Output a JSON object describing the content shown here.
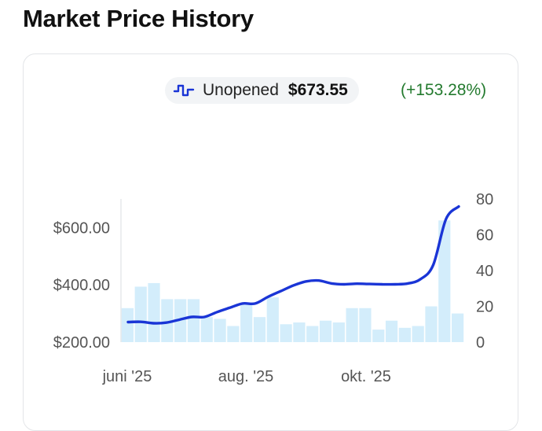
{
  "page": {
    "title": "Market Price History"
  },
  "legend": {
    "icon": "step-line-icon",
    "name": "Unopened",
    "price": "$673.55",
    "change": "(+153.28%)"
  },
  "colors": {
    "line": "#1a35d6",
    "bar": "#d3edfb",
    "change": "#237a2e"
  },
  "chart_data": {
    "type": "line",
    "x_tick_labels": [
      "juni '25",
      "aug. '25",
      "okt. '25"
    ],
    "y_left_ticks": [
      "$200.00",
      "$400.00",
      "$600.00"
    ],
    "y_left_values": [
      200,
      400,
      600
    ],
    "y_right_ticks": [
      "0",
      "20",
      "40",
      "60",
      "80"
    ],
    "y_right_values": [
      0,
      20,
      40,
      60,
      80
    ],
    "ylim_left": [
      200,
      700
    ],
    "ylim_right": [
      0,
      80
    ],
    "series": [
      {
        "name": "Unopened",
        "axis": "left",
        "kind": "line",
        "values": [
          270,
          271,
          266,
          268,
          278,
          288,
          288,
          305,
          320,
          335,
          335,
          358,
          378,
          398,
          412,
          415,
          405,
          402,
          404,
          403,
          402,
          402,
          405,
          420,
          470,
          630,
          673.55
        ]
      },
      {
        "axis": "right",
        "kind": "bar",
        "values": [
          19,
          31,
          33,
          24,
          24,
          24,
          14,
          13,
          9,
          21,
          14,
          25,
          10,
          11,
          9,
          12,
          11,
          19,
          19,
          7,
          12,
          8,
          9,
          20,
          68,
          16
        ]
      }
    ]
  }
}
